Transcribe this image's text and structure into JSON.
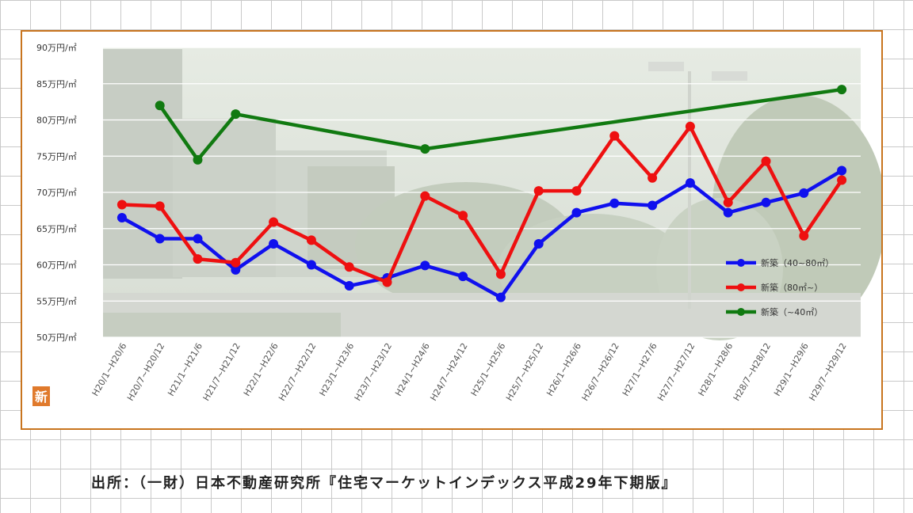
{
  "chart_data": {
    "type": "line",
    "categories": [
      "H20/1~H20/6",
      "H20/7~H20/12",
      "H21/1~H21/6",
      "H21/7~H21/12",
      "H22/1~H22/6",
      "H22/7~H22/12",
      "H23/1~H23/6",
      "H23/7~H23/12",
      "H24/1~H24/6",
      "H24/7~H24/12",
      "H25/1~H25/6",
      "H25/7~H25/12",
      "H26/1~H26/6",
      "H26/7~H26/12",
      "H27/1~H27/6",
      "H27/7~H27/12",
      "H28/1~H28/6",
      "H28/7~H28/12",
      "H29/1~H29/6",
      "H29/7~H29/12"
    ],
    "y_ticks": [
      "50万円/㎡",
      "55万円/㎡",
      "60万円/㎡",
      "65万円/㎡",
      "70万円/㎡",
      "75万円/㎡",
      "80万円/㎡",
      "85万円/㎡",
      "90万円/㎡"
    ],
    "ylim": [
      50,
      90
    ],
    "grid": true,
    "legend_position": "right",
    "series": [
      {
        "name": "新築（40~80㎡）",
        "color": "#1010ee",
        "values": [
          66.5,
          63.6,
          63.6,
          59.3,
          62.9,
          60.0,
          57.1,
          58.2,
          59.9,
          58.4,
          55.5,
          62.9,
          67.2,
          68.5,
          68.2,
          71.3,
          67.2,
          68.6,
          69.9,
          73.0
        ]
      },
      {
        "name": "新築（80㎡~）",
        "color": "#ee1010",
        "values": [
          68.3,
          68.1,
          60.8,
          60.3,
          65.9,
          63.4,
          59.7,
          57.6,
          69.5,
          66.8,
          58.7,
          70.2,
          70.2,
          77.8,
          72.0,
          79.1,
          68.6,
          74.3,
          64.0,
          71.7
        ]
      },
      {
        "name": "新築（~40㎡）",
        "color": "#117a11",
        "values": [
          null,
          82.0,
          74.5,
          80.8,
          null,
          null,
          null,
          null,
          76.0,
          null,
          null,
          null,
          null,
          null,
          null,
          null,
          null,
          null,
          null,
          84.2
        ]
      }
    ],
    "badge": "新"
  },
  "source": "出所：（一財）日本不動産研究所『住宅マーケットインデックス平成29年下期版』"
}
